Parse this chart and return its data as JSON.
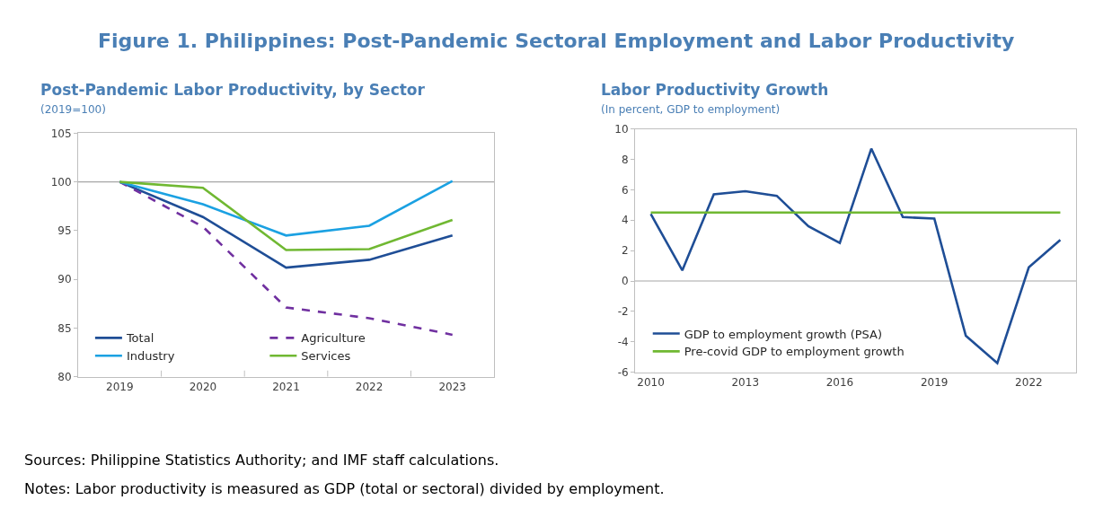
{
  "chart_data": [
    {
      "type": "line",
      "title": "Post-Pandemic Labor Productivity, by Sector",
      "subtitle": "(2019=100)",
      "annotations": [
        "Figure 1. Philippines: Post-Pandemic Sectoral Employment and Labor Productivity",
        "Sources: Philippine Statistics Authority; and IMF staff calculations.",
        "Notes: Labor productivity is measured as GDP (total or sectoral) divided by employment."
      ],
      "categories": [
        "2019",
        "2020",
        "2021",
        "2022",
        "2023"
      ],
      "series": [
        {
          "name": "Total",
          "color": "#1f4e96",
          "values": [
            100,
            96.4,
            91.2,
            92.0,
            94.5
          ]
        },
        {
          "name": "Agriculture",
          "color": "#7030a0",
          "values": [
            100,
            95.4,
            87.1,
            86.0,
            84.3
          ],
          "line_style": "dashed"
        },
        {
          "name": "Industry",
          "color": "#1ba1e2",
          "values": [
            100,
            97.7,
            94.5,
            95.5,
            100.1
          ]
        },
        {
          "name": "Services",
          "color": "#70b832",
          "values": [
            100,
            99.4,
            93.0,
            93.1,
            96.1
          ]
        }
      ],
      "ylim": [
        80,
        105
      ],
      "yticks": [
        80,
        85,
        90,
        95,
        100,
        105
      ],
      "ref_lines": [
        {
          "axis": "y",
          "value": 100,
          "color": "#a6a6a6"
        }
      ],
      "grid": false,
      "legend": "bottom left",
      "marker": "none",
      "line_style": "solid"
    },
    {
      "type": "line",
      "title": "Labor Productivity Growth",
      "subtitle": "(In percent, GDP to employment)",
      "series": [
        {
          "name": "GDP to employment growth (PSA)",
          "color": "#1f4e96",
          "x": [
            2010,
            2011,
            2012,
            2013,
            2014,
            2015,
            2016,
            2017,
            2018,
            2019,
            2020,
            2021,
            2022,
            2023
          ],
          "values": [
            4.4,
            0.7,
            5.7,
            5.9,
            5.6,
            3.6,
            2.5,
            8.7,
            4.2,
            4.1,
            -3.6,
            -5.4,
            0.9,
            2.7
          ]
        },
        {
          "name": "Pre-covid GDP to employment growth",
          "color": "#70b832",
          "x": [
            2010,
            2023
          ],
          "values": [
            4.5,
            4.5
          ]
        }
      ],
      "xlim": [
        2009.5,
        2023.5
      ],
      "xticks": [
        2010,
        2013,
        2016,
        2019,
        2022
      ],
      "ylim": [
        -6,
        10
      ],
      "yticks": [
        -6,
        -4,
        -2,
        0,
        2,
        4,
        6,
        8,
        10
      ],
      "ref_lines": [
        {
          "axis": "y",
          "value": 0,
          "color": "#a6a6a6"
        }
      ],
      "grid": false,
      "legend": "bottom left",
      "marker": "none",
      "line_style": "solid"
    }
  ]
}
